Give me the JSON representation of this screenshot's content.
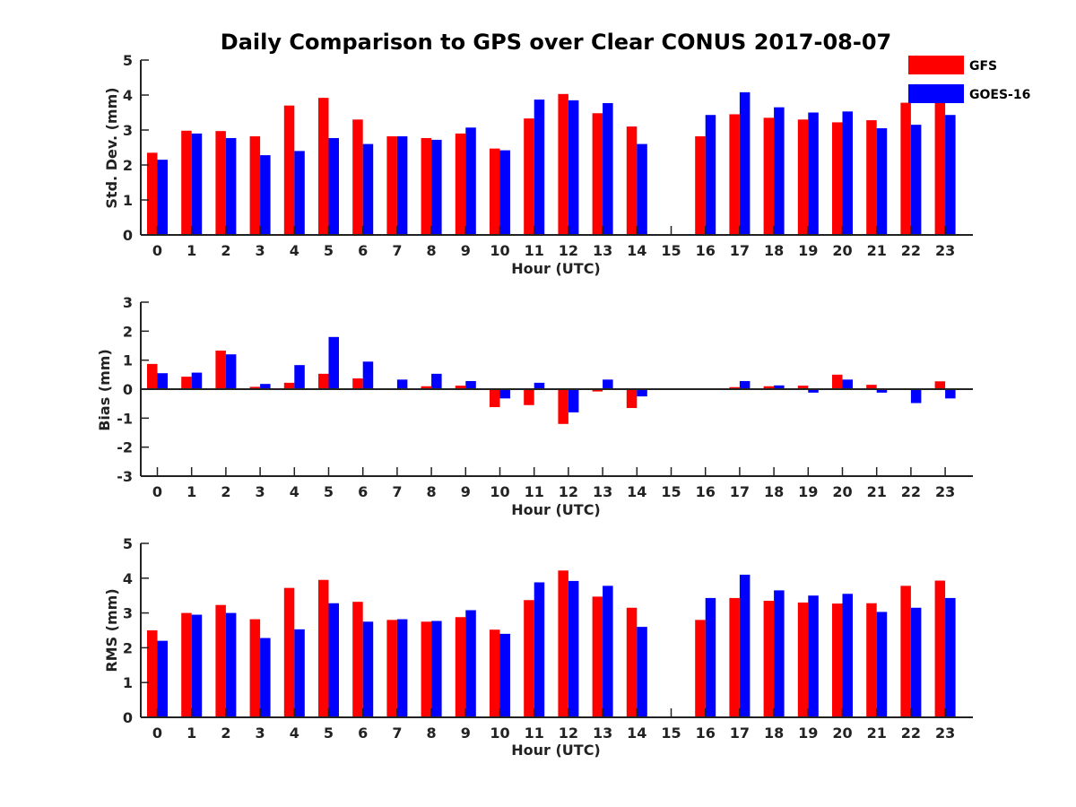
{
  "chart_data": {
    "title": "Daily Comparison to GPS over Clear CONUS 2017-08-07",
    "legend": {
      "placement": "top-right",
      "entries": [
        {
          "name": "GFS",
          "color": "#ff0000"
        },
        {
          "name": "GOES-16",
          "color": "#0000ff"
        }
      ]
    },
    "panels": [
      {
        "type": "bar",
        "ylabel": "Std. Dev. (mm)",
        "xlabel": "Hour (UTC)",
        "ylim": [
          0,
          5
        ],
        "yticks": [
          0,
          1,
          2,
          3,
          4,
          5
        ],
        "categories": [
          "0",
          "1",
          "2",
          "3",
          "4",
          "5",
          "6",
          "7",
          "8",
          "9",
          "10",
          "11",
          "12",
          "13",
          "14",
          "15",
          "16",
          "17",
          "18",
          "19",
          "20",
          "21",
          "22",
          "23"
        ],
        "series": [
          {
            "name": "GFS",
            "color": "#ff0000",
            "values": [
              2.35,
              2.98,
              2.97,
              2.82,
              3.7,
              3.92,
              3.3,
              2.82,
              2.77,
              2.9,
              2.47,
              3.33,
              4.03,
              3.48,
              3.1,
              null,
              2.82,
              3.45,
              3.35,
              3.3,
              3.22,
              3.28,
              3.78,
              3.95
            ]
          },
          {
            "name": "GOES-16",
            "color": "#0000ff",
            "values": [
              2.15,
              2.9,
              2.77,
              2.28,
              2.4,
              2.77,
              2.6,
              2.82,
              2.72,
              3.07,
              2.42,
              3.87,
              3.85,
              3.77,
              2.6,
              null,
              3.43,
              4.08,
              3.65,
              3.5,
              3.53,
              3.05,
              3.15,
              3.43
            ]
          }
        ]
      },
      {
        "type": "bar",
        "ylabel": "Bias (mm)",
        "xlabel": "Hour (UTC)",
        "ylim": [
          -3,
          3
        ],
        "yticks": [
          -3,
          -2,
          -1,
          0,
          1,
          2,
          3
        ],
        "categories": [
          "0",
          "1",
          "2",
          "3",
          "4",
          "5",
          "6",
          "7",
          "8",
          "9",
          "10",
          "11",
          "12",
          "13",
          "14",
          "15",
          "16",
          "17",
          "18",
          "19",
          "20",
          "21",
          "22",
          "23"
        ],
        "series": [
          {
            "name": "GFS",
            "color": "#ff0000",
            "values": [
              0.87,
              0.43,
              1.33,
              0.08,
              0.22,
              0.53,
              0.37,
              0.0,
              0.1,
              0.12,
              -0.62,
              -0.55,
              -1.2,
              -0.08,
              -0.65,
              null,
              0.02,
              0.07,
              0.1,
              0.12,
              0.5,
              0.15,
              -0.02,
              0.27
            ]
          },
          {
            "name": "GOES-16",
            "color": "#0000ff",
            "values": [
              0.55,
              0.57,
              1.2,
              0.18,
              0.83,
              1.8,
              0.95,
              0.33,
              0.53,
              0.28,
              -0.32,
              0.22,
              -0.8,
              0.33,
              -0.25,
              null,
              0.02,
              0.28,
              0.13,
              -0.12,
              0.33,
              -0.12,
              -0.48,
              -0.32
            ]
          }
        ]
      },
      {
        "type": "bar",
        "ylabel": "RMS (mm)",
        "xlabel": "Hour (UTC)",
        "ylim": [
          0,
          5
        ],
        "yticks": [
          0,
          1,
          2,
          3,
          4,
          5
        ],
        "categories": [
          "0",
          "1",
          "2",
          "3",
          "4",
          "5",
          "6",
          "7",
          "8",
          "9",
          "10",
          "11",
          "12",
          "13",
          "14",
          "15",
          "16",
          "17",
          "18",
          "19",
          "20",
          "21",
          "22",
          "23"
        ],
        "series": [
          {
            "name": "GFS",
            "color": "#ff0000",
            "values": [
              2.5,
              3.0,
              3.23,
              2.82,
              3.72,
              3.95,
              3.32,
              2.8,
              2.75,
              2.88,
              2.52,
              3.37,
              4.22,
              3.47,
              3.15,
              null,
              2.8,
              3.43,
              3.35,
              3.3,
              3.27,
              3.28,
              3.78,
              3.93
            ]
          },
          {
            "name": "GOES-16",
            "color": "#0000ff",
            "values": [
              2.2,
              2.95,
              3.0,
              2.28,
              2.53,
              3.28,
              2.75,
              2.82,
              2.77,
              3.08,
              2.4,
              3.88,
              3.92,
              3.78,
              2.6,
              null,
              3.43,
              4.1,
              3.65,
              3.5,
              3.55,
              3.03,
              3.15,
              3.43
            ]
          }
        ]
      }
    ]
  }
}
